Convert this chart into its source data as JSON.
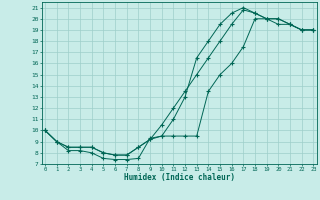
{
  "xlabel": "Humidex (Indice chaleur)",
  "bg_color": "#c8ece8",
  "grid_color": "#9ecfca",
  "line_color": "#006655",
  "xlim": [
    -0.3,
    23.3
  ],
  "ylim": [
    7,
    21.5
  ],
  "xticks": [
    0,
    1,
    2,
    3,
    4,
    5,
    6,
    7,
    8,
    9,
    10,
    11,
    12,
    13,
    14,
    15,
    16,
    17,
    18,
    19,
    20,
    21,
    22,
    23
  ],
  "yticks": [
    7,
    8,
    9,
    10,
    11,
    12,
    13,
    14,
    15,
    16,
    17,
    18,
    19,
    20,
    21
  ],
  "line1_x": [
    0,
    1,
    2,
    3,
    4,
    5,
    6,
    7,
    8,
    9,
    10,
    11,
    12,
    13,
    14,
    15,
    16,
    17,
    18,
    19,
    20,
    21,
    22,
    23
  ],
  "line1_y": [
    10,
    9,
    8.2,
    8.2,
    8.0,
    7.5,
    7.4,
    7.4,
    7.5,
    9.3,
    9.5,
    11,
    13,
    16.5,
    18,
    19.5,
    20.5,
    21,
    20.5,
    20,
    19.5,
    19.5,
    19,
    19
  ],
  "line2_x": [
    0,
    1,
    2,
    3,
    4,
    5,
    6,
    7,
    8,
    9,
    10,
    11,
    12,
    13,
    14,
    15,
    16,
    17,
    18,
    19,
    20,
    21,
    22,
    23
  ],
  "line2_y": [
    10,
    9,
    8.5,
    8.5,
    8.5,
    8.0,
    7.8,
    7.8,
    8.5,
    9.2,
    9.5,
    9.5,
    9.5,
    9.5,
    13.5,
    15,
    16,
    17.5,
    20,
    20,
    20,
    19.5,
    19,
    19
  ],
  "line3_x": [
    0,
    1,
    2,
    3,
    4,
    5,
    6,
    7,
    8,
    9,
    10,
    11,
    12,
    13,
    14,
    15,
    16,
    17,
    18,
    19,
    20,
    21,
    22,
    23
  ],
  "line3_y": [
    10,
    9,
    8.5,
    8.5,
    8.5,
    8.0,
    7.8,
    7.8,
    8.5,
    9.2,
    10.5,
    12,
    13.5,
    15,
    16.5,
    18,
    19.5,
    20.8,
    20.5,
    20,
    20,
    19.5,
    19,
    19
  ]
}
